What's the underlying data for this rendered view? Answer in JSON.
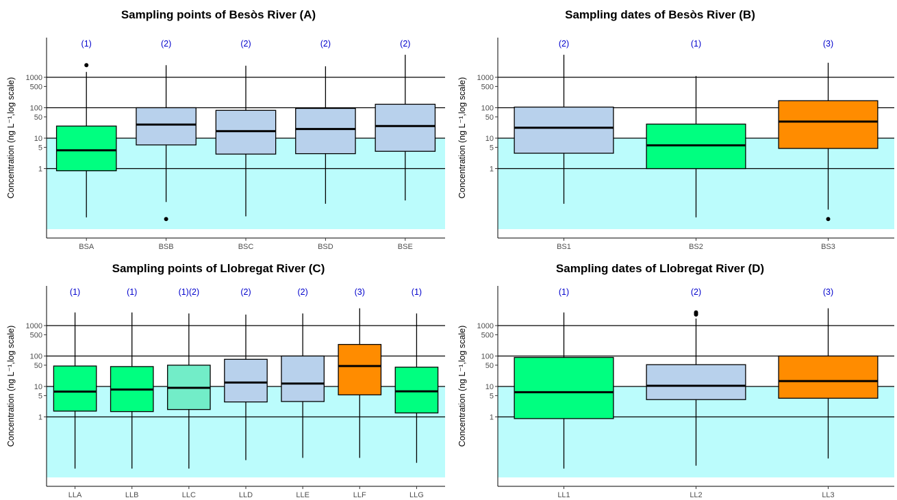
{
  "figure": {
    "y_axis_label": "Concentration (ng L⁻¹,log scale)",
    "y_ticks": [
      1,
      5,
      10,
      50,
      100,
      500,
      1000
    ],
    "colors": {
      "background_band": "#bbfcfc",
      "box_blue": "#b8d1ec",
      "box_green": "#00ff80",
      "box_mint": "#72edc8",
      "box_orange": "#ff8c00",
      "group_label": "#0000cc"
    }
  },
  "chart_data": [
    {
      "type": "boxplot",
      "title": "Sampling points of Besòs River (A)",
      "ylabel": "Concentration (ng L⁻¹,log scale)",
      "y_scale": "log",
      "ylim": [
        0.01,
        30000
      ],
      "band_ylim": [
        0.01,
        10
      ],
      "grid": "horizontal at 1, 10, 100, 1000",
      "categories": [
        "BSA",
        "BSB",
        "BSC",
        "BSD",
        "BSE"
      ],
      "group_labels": [
        "(1)",
        "(2)",
        "(2)",
        "(2)",
        "(2)"
      ],
      "boxes": [
        {
          "min": 0.025,
          "q1": 0.85,
          "median": 4,
          "q3": 25,
          "max": 1500,
          "fill": "#00ff80",
          "outliers": [
            2500
          ]
        },
        {
          "min": 0.08,
          "q1": 6,
          "median": 28,
          "q3": 100,
          "max": 2500,
          "fill": "#b8d1ec",
          "outliers": [
            0.022
          ]
        },
        {
          "min": 0.027,
          "q1": 3,
          "median": 17,
          "q3": 82,
          "max": 2400,
          "fill": "#b8d1ec",
          "outliers": []
        },
        {
          "min": 0.07,
          "q1": 3.1,
          "median": 20,
          "q3": 95,
          "max": 2300,
          "fill": "#b8d1ec",
          "outliers": []
        },
        {
          "min": 0.09,
          "q1": 3.7,
          "median": 25,
          "q3": 130,
          "max": 5500,
          "fill": "#b8d1ec",
          "outliers": []
        }
      ]
    },
    {
      "type": "boxplot",
      "title": "Sampling dates of Besòs River (B)",
      "ylabel": "Concentration (ng L⁻¹,log scale)",
      "y_scale": "log",
      "ylim": [
        0.01,
        30000
      ],
      "band_ylim": [
        0.01,
        10
      ],
      "grid": "horizontal at 1, 10, 100, 1000",
      "categories": [
        "BS1",
        "BS2",
        "BS3"
      ],
      "group_labels": [
        "(2)",
        "(1)",
        "(3)"
      ],
      "boxes": [
        {
          "min": 0.07,
          "q1": 3.2,
          "median": 22,
          "q3": 105,
          "max": 5500,
          "fill": "#b8d1ec",
          "outliers": []
        },
        {
          "min": 0.025,
          "q1": 1,
          "median": 5.8,
          "q3": 29,
          "max": 1100,
          "fill": "#00ff80",
          "outliers": []
        },
        {
          "min": 0.045,
          "q1": 4.6,
          "median": 35,
          "q3": 170,
          "max": 3000,
          "fill": "#ff8c00",
          "outliers": [
            0.022
          ]
        }
      ]
    },
    {
      "type": "boxplot",
      "title": "Sampling points of Llobregat River (C)",
      "ylabel": "Concentration (ng L⁻¹,log scale)",
      "y_scale": "log",
      "ylim": [
        0.01,
        30000
      ],
      "band_ylim": [
        0.01,
        10
      ],
      "grid": "horizontal at 1, 10, 100, 1000",
      "categories": [
        "LLA",
        "LLB",
        "LLC",
        "LLD",
        "LLE",
        "LLF",
        "LLG"
      ],
      "group_labels": [
        "(1)",
        "(1)",
        "(1)(2)",
        "(2)",
        "(2)",
        "(3)",
        "(1)"
      ],
      "boxes": [
        {
          "min": 0.02,
          "q1": 1.55,
          "median": 6.8,
          "q3": 47,
          "max": 2700,
          "fill": "#00ff80",
          "outliers": []
        },
        {
          "min": 0.02,
          "q1": 1.5,
          "median": 7.9,
          "q3": 45,
          "max": 2700,
          "fill": "#00ff80",
          "outliers": []
        },
        {
          "min": 0.02,
          "q1": 1.75,
          "median": 9,
          "q3": 50,
          "max": 2500,
          "fill": "#72edc8",
          "outliers": []
        },
        {
          "min": 0.038,
          "q1": 3.1,
          "median": 13.5,
          "q3": 78,
          "max": 2300,
          "fill": "#b8d1ec",
          "outliers": []
        },
        {
          "min": 0.045,
          "q1": 3.2,
          "median": 12.5,
          "q3": 100,
          "max": 2500,
          "fill": "#b8d1ec",
          "outliers": []
        },
        {
          "min": 0.045,
          "q1": 5.3,
          "median": 47,
          "q3": 240,
          "max": 3700,
          "fill": "#ff8c00",
          "outliers": []
        },
        {
          "min": 0.031,
          "q1": 1.35,
          "median": 6.9,
          "q3": 43,
          "max": 2500,
          "fill": "#00ff80",
          "outliers": []
        }
      ]
    },
    {
      "type": "boxplot",
      "title": "Sampling dates of Llobregat River (D)",
      "ylabel": "Concentration (ng L⁻¹,log scale)",
      "y_scale": "log",
      "ylim": [
        0.01,
        30000
      ],
      "band_ylim": [
        0.01,
        10
      ],
      "grid": "horizontal at 1, 10, 100, 1000",
      "categories": [
        "LL1",
        "LL2",
        "LL3"
      ],
      "group_labels": [
        "(1)",
        "(2)",
        "(3)"
      ],
      "boxes": [
        {
          "min": 0.02,
          "q1": 0.88,
          "median": 6.5,
          "q3": 90,
          "max": 2700,
          "fill": "#00ff80",
          "outliers": []
        },
        {
          "min": 0.025,
          "q1": 3.7,
          "median": 10.5,
          "q3": 52,
          "max": 1700,
          "fill": "#b8d1ec",
          "outliers": [
            2300,
            2500,
            2700
          ]
        },
        {
          "min": 0.043,
          "q1": 4.1,
          "median": 15,
          "q3": 100,
          "max": 3700,
          "fill": "#ff8c00",
          "outliers": []
        }
      ]
    }
  ]
}
